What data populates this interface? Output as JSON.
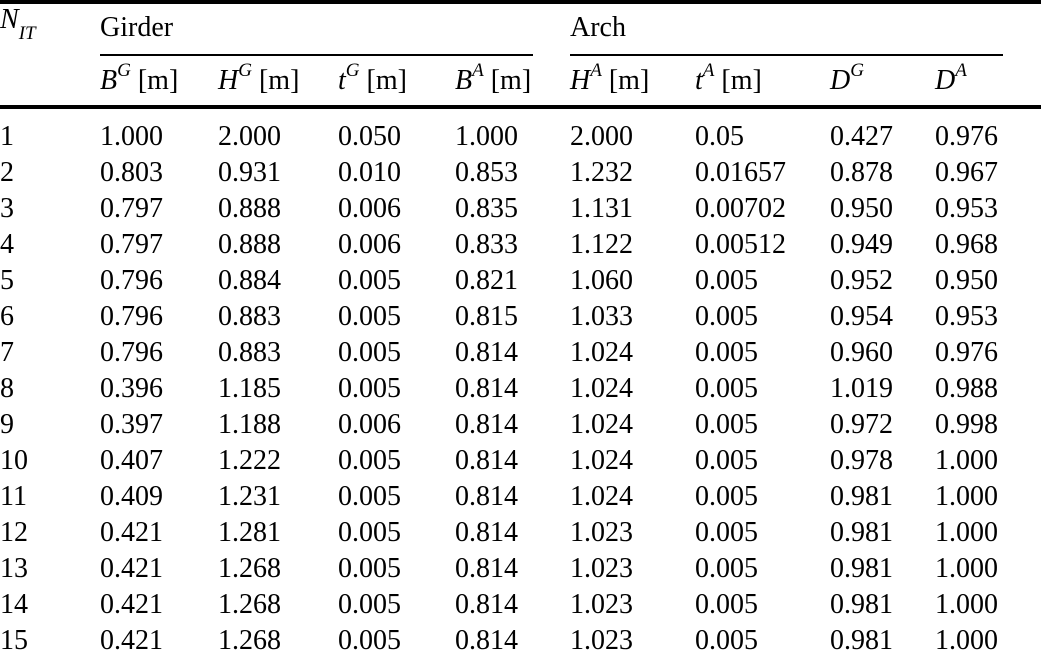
{
  "colors": {
    "text": "#000000",
    "rule": "#000000",
    "background": "#ffffff"
  },
  "table": {
    "row_header": {
      "label": "N",
      "sub": "IT"
    },
    "groups": [
      {
        "label": "Girder",
        "colspan": 4
      },
      {
        "label": "Arch",
        "colspan": 4
      }
    ],
    "columns": [
      {
        "symbol": "B",
        "sup": "G",
        "unit": "[m]"
      },
      {
        "symbol": "H",
        "sup": "G",
        "unit": "[m]"
      },
      {
        "symbol": "t",
        "sup": "G",
        "unit": "[m]"
      },
      {
        "symbol": "B",
        "sup": "A",
        "unit": "[m]"
      },
      {
        "symbol": "H",
        "sup": "A",
        "unit": "[m]"
      },
      {
        "symbol": "t",
        "sup": "A",
        "unit": "[m]"
      },
      {
        "symbol": "D",
        "sup": "G",
        "unit": ""
      },
      {
        "symbol": "D",
        "sup": "A",
        "unit": ""
      }
    ],
    "rows": [
      {
        "n": "1",
        "values": [
          "1.000",
          "2.000",
          "0.050",
          "1.000",
          "2.000",
          "0.05",
          "0.427",
          "0.976"
        ]
      },
      {
        "n": "2",
        "values": [
          "0.803",
          "0.931",
          "0.010",
          "0.853",
          "1.232",
          "0.01657",
          "0.878",
          "0.967"
        ]
      },
      {
        "n": "3",
        "values": [
          "0.797",
          "0.888",
          "0.006",
          "0.835",
          "1.131",
          "0.00702",
          "0.950",
          "0.953"
        ]
      },
      {
        "n": "4",
        "values": [
          "0.797",
          "0.888",
          "0.006",
          "0.833",
          "1.122",
          "0.00512",
          "0.949",
          "0.968"
        ]
      },
      {
        "n": "5",
        "values": [
          "0.796",
          "0.884",
          "0.005",
          "0.821",
          "1.060",
          "0.005",
          "0.952",
          "0.950"
        ]
      },
      {
        "n": "6",
        "values": [
          "0.796",
          "0.883",
          "0.005",
          "0.815",
          "1.033",
          "0.005",
          "0.954",
          "0.953"
        ]
      },
      {
        "n": "7",
        "values": [
          "0.796",
          "0.883",
          "0.005",
          "0.814",
          "1.024",
          "0.005",
          "0.960",
          "0.976"
        ]
      },
      {
        "n": "8",
        "values": [
          "0.396",
          "1.185",
          "0.005",
          "0.814",
          "1.024",
          "0.005",
          "1.019",
          "0.988"
        ]
      },
      {
        "n": "9",
        "values": [
          "0.397",
          "1.188",
          "0.006",
          "0.814",
          "1.024",
          "0.005",
          "0.972",
          "0.998"
        ]
      },
      {
        "n": "10",
        "values": [
          "0.407",
          "1.222",
          "0.005",
          "0.814",
          "1.024",
          "0.005",
          "0.978",
          "1.000"
        ]
      },
      {
        "n": "11",
        "values": [
          "0.409",
          "1.231",
          "0.005",
          "0.814",
          "1.024",
          "0.005",
          "0.981",
          "1.000"
        ]
      },
      {
        "n": "12",
        "values": [
          "0.421",
          "1.281",
          "0.005",
          "0.814",
          "1.023",
          "0.005",
          "0.981",
          "1.000"
        ]
      },
      {
        "n": "13",
        "values": [
          "0.421",
          "1.268",
          "0.005",
          "0.814",
          "1.023",
          "0.005",
          "0.981",
          "1.000"
        ]
      },
      {
        "n": "14",
        "values": [
          "0.421",
          "1.268",
          "0.005",
          "0.814",
          "1.023",
          "0.005",
          "0.981",
          "1.000"
        ]
      },
      {
        "n": "15",
        "values": [
          "0.421",
          "1.268",
          "0.005",
          "0.814",
          "1.023",
          "0.005",
          "0.981",
          "1.000"
        ]
      }
    ]
  }
}
